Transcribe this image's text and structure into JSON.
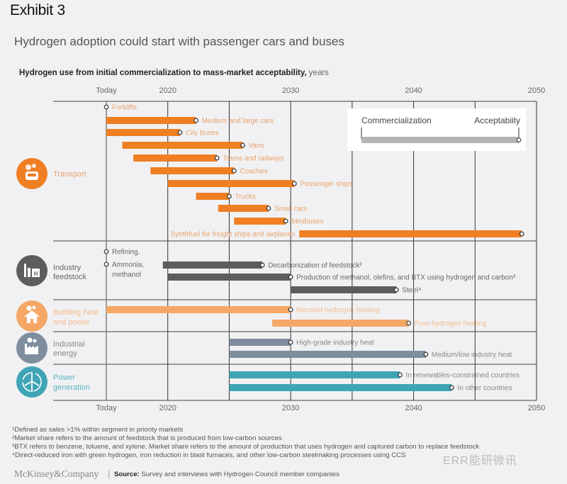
{
  "exhibit": "Exhibit 3",
  "title": "Hydrogen adoption could start with passenger cars and buses",
  "subtitle_bold": "Hydrogen use from initial commercialization to mass-market acceptability,",
  "subtitle_unit": " years",
  "legend": {
    "start": "Commercialization",
    "end": "Acceptabiity"
  },
  "colors": {
    "transport": "#ef7f22",
    "transport_text": "#e9a36b",
    "feedstock": "#5d5d60",
    "feedstock_text": "#666666",
    "building": "#f5a865",
    "building_text": "#f3bb8c",
    "industrial": "#7f8e9e",
    "industrial_text": "#888888",
    "power": "#3fa5b6",
    "power_text": "#888888",
    "legend_bar": "#b5b5b5"
  },
  "footnotes": [
    "¹Defined as sales >1% within segment in priority markets",
    "²Market share refers to the amount of feedstock that is produced from low-carbon sources",
    "³BTX refers to benzene, toluene, and xylene. Market share refers to the amount of production that uses hydrogen and captured carbon to replace feedstock",
    "⁴Direct-reduced iron with green hydrogen, iron reduction in blast furnaces, and other low-carbon steelmaking processes using CCS"
  ],
  "brand": "McKinsey&Company",
  "source_label": "Source:",
  "source_text": " Survey and interviews with Hydrogen Council member companies",
  "watermark": "ERR能研微讯",
  "chart_data": {
    "type": "bar",
    "subtype": "gantt-range",
    "title": "Hydrogen adoption could start with passenger cars and buses",
    "xlabel": "years",
    "xlim": [
      2015,
      2050
    ],
    "x_ticks": [
      {
        "value": 2015,
        "label": "Today"
      },
      {
        "value": 2020,
        "label": "2020"
      },
      {
        "value": 2030,
        "label": "2030"
      },
      {
        "value": 2040,
        "label": "2040"
      },
      {
        "value": 2050,
        "label": "2050"
      }
    ],
    "gridlines": [
      2015,
      2020,
      2025,
      2030,
      2035,
      2040,
      2045,
      2050
    ],
    "legend_placement": "top-right",
    "segments": [
      {
        "name": "Transport",
        "color_key": "transport",
        "icon": "car-icon",
        "items": [
          {
            "label": "Forklifts",
            "start": 2015,
            "end": 2015,
            "label_side": "right"
          },
          {
            "label": "Medium and large cars",
            "start": 2015,
            "end": 2022.3,
            "label_side": "right"
          },
          {
            "label": "City buses",
            "start": 2015,
            "end": 2021,
            "label_side": "right"
          },
          {
            "label": "Vans",
            "start": 2016.3,
            "end": 2026.1,
            "label_side": "right"
          },
          {
            "label": "Trams and railways",
            "start": 2017.2,
            "end": 2024,
            "label_side": "right"
          },
          {
            "label": "Coaches",
            "start": 2018.6,
            "end": 2025.4,
            "label_side": "right"
          },
          {
            "label": "Passenger ships",
            "start": 2020,
            "end": 2030.3,
            "label_side": "right"
          },
          {
            "label": "Trucks",
            "start": 2022.3,
            "end": 2025,
            "label_side": "right"
          },
          {
            "label": "Small cars",
            "start": 2024.1,
            "end": 2028.2,
            "label_side": "right"
          },
          {
            "label": "Minibuses",
            "start": 2025.4,
            "end": 2029.6,
            "label_side": "right"
          },
          {
            "label": "Synthfuel for freight ships and airplanes",
            "start": 2030.7,
            "end": 2048.8,
            "label_side": "left"
          }
        ]
      },
      {
        "name": "Industry feedstock",
        "color_key": "feedstock",
        "icon": "factory-h-icon",
        "items": [
          {
            "label": "Refining.",
            "start": 2015,
            "end": 2015,
            "label_side": "right"
          },
          {
            "label": "Ammonia, methanol",
            "start": 2015,
            "end": 2015,
            "label_side": "right"
          },
          {
            "label": "Decarbonization of feedstock²",
            "start": 2019.6,
            "end": 2027.7,
            "label_side": "right"
          },
          {
            "label": "Production of methanol, olefins, and BTX using hydrogen and carbon³",
            "start": 2020,
            "end": 2030,
            "label_side": "right"
          },
          {
            "label": "Steel⁴",
            "start": 2030,
            "end": 2038.6,
            "label_side": "right"
          }
        ]
      },
      {
        "name": "Building heat and power",
        "color_key": "building",
        "icon": "house-icon",
        "items": [
          {
            "label": "Blended-hydrogen heating",
            "start": 2015,
            "end": 2030,
            "label_side": "right"
          },
          {
            "label": "Pure-hydrogen heating",
            "start": 2028.5,
            "end": 2039.6,
            "label_side": "right"
          }
        ]
      },
      {
        "name": "Industrial energy",
        "color_key": "industrial",
        "icon": "industry-icon",
        "items": [
          {
            "label": "High-grade industry heat",
            "start": 2025,
            "end": 2030,
            "label_side": "right"
          },
          {
            "label": "Medium/low industry heat",
            "start": 2025,
            "end": 2041,
            "label_side": "right"
          }
        ]
      },
      {
        "name": "Power generation",
        "color_key": "power",
        "icon": "wind-turbine-icon",
        "items": [
          {
            "label": "In renewables-constrained countries",
            "start": 2025,
            "end": 2038.9,
            "label_side": "right"
          },
          {
            "label": "In other countries",
            "start": 2025,
            "end": 2043.1,
            "label_side": "right"
          }
        ]
      }
    ]
  }
}
